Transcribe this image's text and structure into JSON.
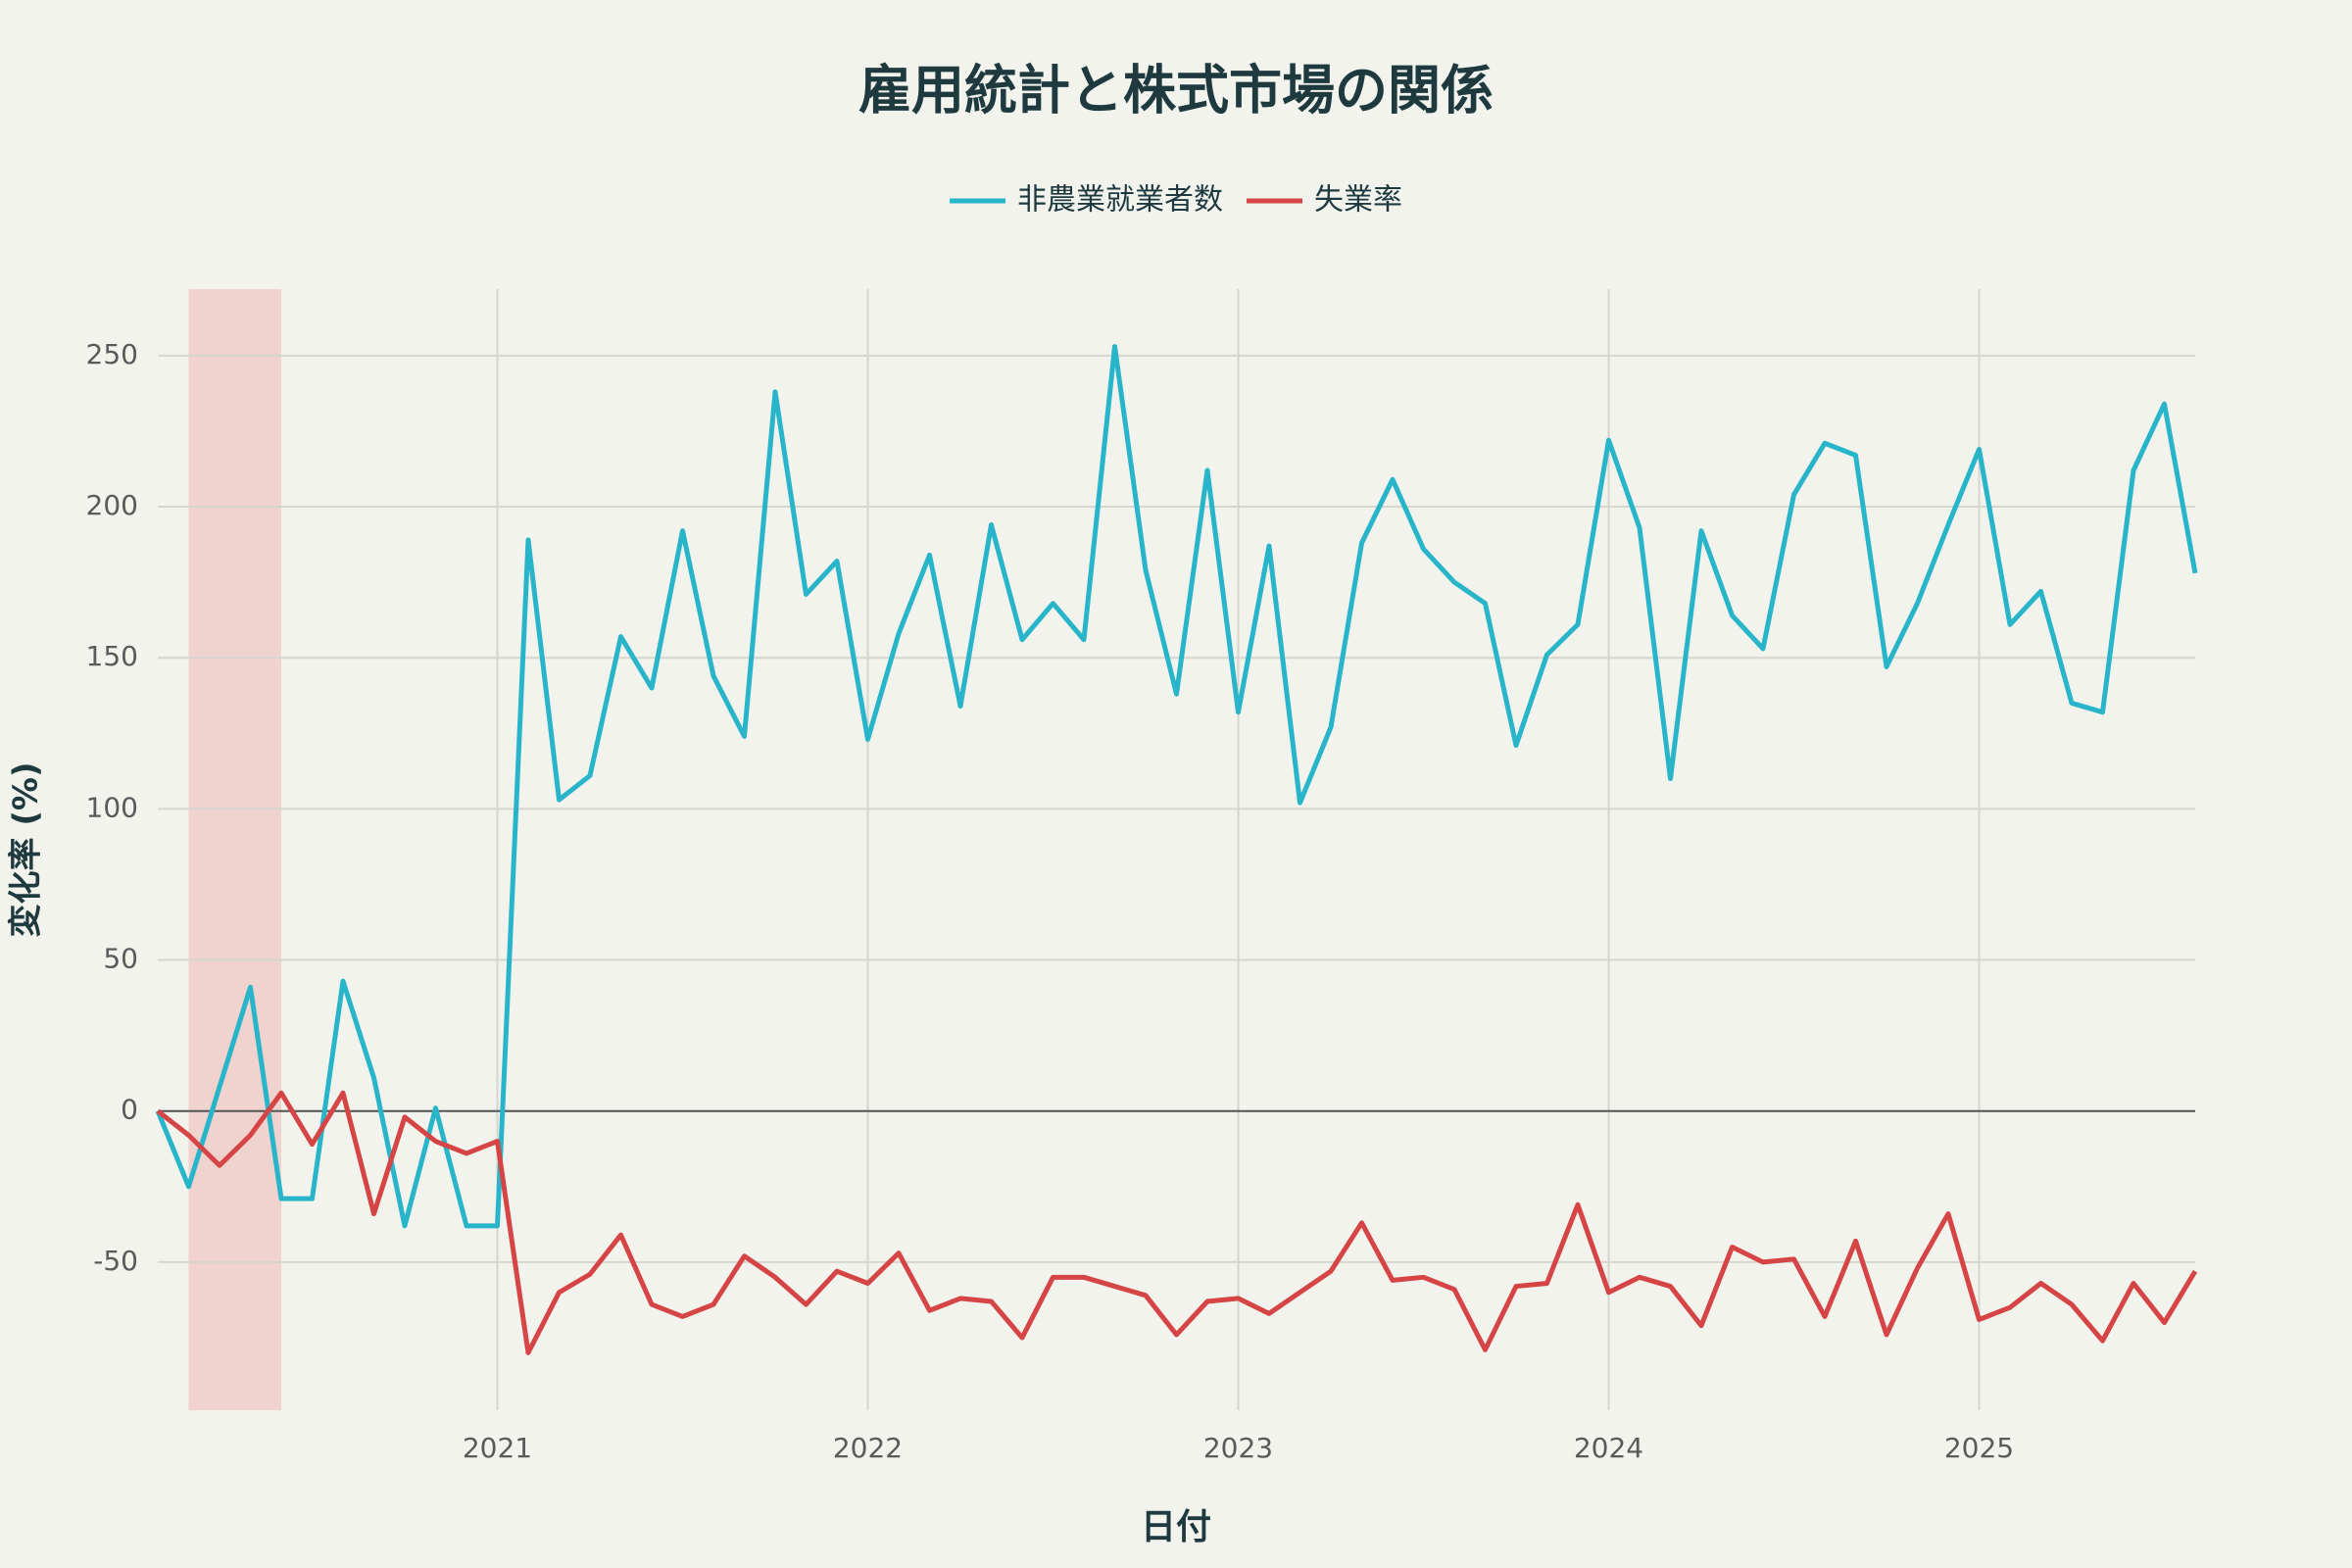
{
  "chart_data": {
    "type": "line",
    "title": "雇用統計と株式市場の関係",
    "x_label": "日付",
    "y_label": "変化率 (%)",
    "x": [
      "2020-02",
      "2020-03",
      "2020-04",
      "2020-05",
      "2020-06",
      "2020-07",
      "2020-08",
      "2020-09",
      "2020-10",
      "2020-11",
      "2020-12",
      "2021-01",
      "2021-02",
      "2021-03",
      "2021-04",
      "2021-05",
      "2021-06",
      "2021-07",
      "2021-08",
      "2021-09",
      "2021-10",
      "2021-11",
      "2021-12",
      "2022-01",
      "2022-02",
      "2022-03",
      "2022-04",
      "2022-05",
      "2022-06",
      "2022-07",
      "2022-08",
      "2022-09",
      "2022-10",
      "2022-11",
      "2022-12",
      "2023-01",
      "2023-02",
      "2023-03",
      "2023-04",
      "2023-05",
      "2023-06",
      "2023-07",
      "2023-08",
      "2023-09",
      "2023-10",
      "2023-11",
      "2023-12",
      "2024-01",
      "2024-02",
      "2024-03",
      "2024-04",
      "2024-05",
      "2024-06",
      "2024-07",
      "2024-08",
      "2024-09",
      "2024-10",
      "2024-11",
      "2024-12",
      "2025-01",
      "2025-02",
      "2025-03",
      "2025-04",
      "2025-05",
      "2025-06",
      "2025-07",
      "2025-08"
    ],
    "series": [
      {
        "name": "非農業就業者数",
        "color": "#29b5c9",
        "values": [
          0,
          -25,
          8,
          41,
          -29,
          -29,
          43,
          11,
          -38,
          1,
          -38,
          -38,
          189,
          103,
          111,
          157,
          140,
          192,
          144,
          124,
          238,
          171,
          182,
          123,
          158,
          184,
          134,
          194,
          156,
          168,
          156,
          253,
          179,
          138,
          212,
          132,
          187,
          102,
          127,
          188,
          209,
          186,
          175,
          168,
          121,
          151,
          161,
          222,
          193,
          110,
          192,
          164,
          153,
          204,
          221,
          217,
          147,
          168,
          194,
          219,
          161,
          172,
          135,
          132,
          212,
          234,
          178
        ]
      },
      {
        "name": "失業率",
        "color": "#d64545",
        "values": [
          0,
          -8,
          -18,
          -8,
          6,
          -11,
          6,
          -34,
          -2,
          -10,
          -14,
          -10,
          -80,
          -60,
          -54,
          -41,
          -64,
          -68,
          -64,
          -48,
          -55,
          -64,
          -53,
          -57,
          -47,
          -66,
          -62,
          -63,
          -75,
          -55,
          -55,
          -58,
          -61,
          -74,
          -63,
          -62,
          -67,
          -60,
          -53,
          -37,
          -56,
          -55,
          -59,
          -79,
          -58,
          -57,
          -31,
          -60,
          -55,
          -58,
          -71,
          -45,
          -50,
          -49,
          -68,
          -43,
          -74,
          -52,
          -34,
          -69,
          -65,
          -57,
          -64,
          -76,
          -57,
          -70,
          -53
        ]
      }
    ],
    "xlim": [
      "2020-02",
      "2025-08"
    ],
    "xticks": [
      {
        "value": "2021-01",
        "label": "2021"
      },
      {
        "value": "2022-01",
        "label": "2022"
      },
      {
        "value": "2023-01",
        "label": "2023"
      },
      {
        "value": "2024-01",
        "label": "2024"
      },
      {
        "value": "2025-01",
        "label": "2025"
      }
    ],
    "ylim": [
      -99,
      272
    ],
    "yticks": [
      -50,
      0,
      50,
      100,
      150,
      200,
      250
    ],
    "grid": true,
    "zero_line": true,
    "legend": "top",
    "shade": {
      "x": [
        "2020-03",
        "2020-06"
      ],
      "color": "#f0d2ce"
    }
  }
}
